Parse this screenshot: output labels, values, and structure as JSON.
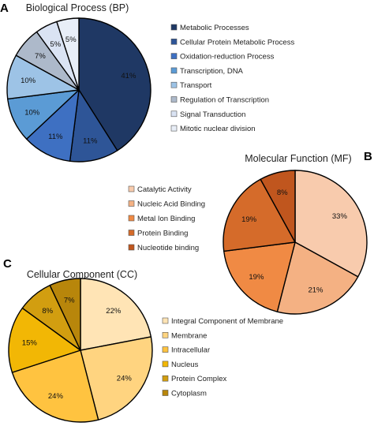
{
  "chart_data": [
    {
      "id": "bp",
      "type": "pie",
      "panel_letter": "A",
      "title": "Biological Process (BP)",
      "legend_position": "right",
      "slices": [
        {
          "label": "Metabolic Processes",
          "value": 41,
          "value_label": "41%",
          "color": "#1f3864"
        },
        {
          "label": "Cellular Protein Metabolic Process",
          "value": 11,
          "value_label": "11%",
          "color": "#2e5597"
        },
        {
          "label": "Oxidation-reduction Process",
          "value": 11,
          "value_label": "11%",
          "color": "#3e70c2"
        },
        {
          "label": "Transcription, DNA",
          "value": 10,
          "value_label": "10%",
          "color": "#5b9bd5"
        },
        {
          "label": "Transport",
          "value": 10,
          "value_label": "10%",
          "color": "#9dc3e6"
        },
        {
          "label": "Regulation of Transcription",
          "value": 7,
          "value_label": "7%",
          "color": "#adb9ca"
        },
        {
          "label": "Signal Transduction",
          "value": 5,
          "value_label": "5%",
          "color": "#dae3f3"
        },
        {
          "label": "Mitotic nuclear division",
          "value": 5,
          "value_label": "5%",
          "color": "#e8eef7"
        }
      ]
    },
    {
      "id": "mf",
      "type": "pie",
      "panel_letter": "B",
      "title": "Molecular Function (MF)",
      "legend_position": "left",
      "slices": [
        {
          "label": "Catalytic Activity",
          "value": 33,
          "value_label": "33%",
          "color": "#f8cbad"
        },
        {
          "label": "Nucleic Acid Binding",
          "value": 21,
          "value_label": "21%",
          "color": "#f4b183"
        },
        {
          "label": "Metal Ion Binding",
          "value": 19,
          "value_label": "19%",
          "color": "#f08a44"
        },
        {
          "label": "Protein Binding",
          "value": 19,
          "value_label": "19%",
          "color": "#d56b2a"
        },
        {
          "label": "Nucleotide binding",
          "value": 8,
          "value_label": "8%",
          "color": "#c0561e"
        }
      ]
    },
    {
      "id": "cc",
      "type": "pie",
      "panel_letter": "C",
      "title": "Cellular Component (CC)",
      "legend_position": "right",
      "slices": [
        {
          "label": "Integral Component of Membrane",
          "value": 22,
          "value_label": "22%",
          "color": "#ffe4b5"
        },
        {
          "label": "Membrane",
          "value": 24,
          "value_label": "24%",
          "color": "#ffd480"
        },
        {
          "label": "Intracellular",
          "value": 24,
          "value_label": "24%",
          "color": "#ffc340"
        },
        {
          "label": "Nucleus",
          "value": 15,
          "value_label": "15%",
          "color": "#f2b705"
        },
        {
          "label": "Protein Complex",
          "value": 8,
          "value_label": "8%",
          "color": "#d29e10"
        },
        {
          "label": "Cytoplasm",
          "value": 7,
          "value_label": "7%",
          "color": "#b8860b"
        }
      ]
    }
  ]
}
